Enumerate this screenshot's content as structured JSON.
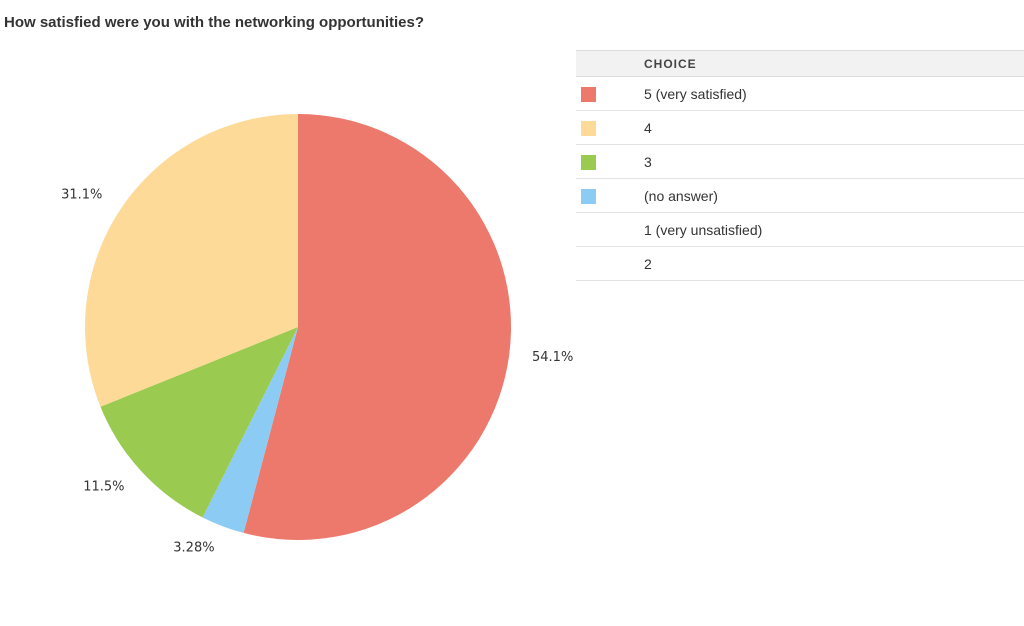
{
  "question": {
    "title": "How satisfied were you with the networking opportunities?"
  },
  "legend": {
    "header": "CHOICE",
    "items": [
      {
        "label": "5 (very satisfied)",
        "color": "#ec796b"
      },
      {
        "label": "4",
        "color": "#fdda98"
      },
      {
        "label": "3",
        "color": "#9acb50"
      },
      {
        "label": "(no answer)",
        "color": "#8ccbf3"
      },
      {
        "label": "1 (very unsatisfied)",
        "color": ""
      },
      {
        "label": "2",
        "color": ""
      }
    ]
  },
  "chart_data": {
    "type": "pie",
    "title": "How satisfied were you with the networking opportunities?",
    "slices": [
      {
        "label": "5 (very satisfied)",
        "value": 54.1,
        "value_label": "54.1%",
        "color": "#ec796b"
      },
      {
        "label": "(no answer)",
        "value": 3.28,
        "value_label": "3.28%",
        "color": "#8ccbf3"
      },
      {
        "label": "3",
        "value": 11.5,
        "value_label": "11.5%",
        "color": "#9acb50"
      },
      {
        "label": "4",
        "value": 31.1,
        "value_label": "31.1%",
        "color": "#fdda98"
      }
    ],
    "legend_position": "right"
  }
}
